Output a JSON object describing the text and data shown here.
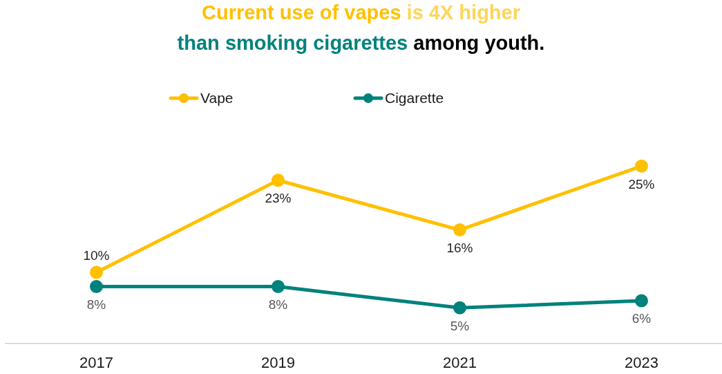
{
  "chart_data": {
    "type": "line",
    "title": "Current use of vapes is 4X higher\nthan smoking cigarettes among youth.",
    "categories": [
      "2017",
      "2019",
      "2021",
      "2023"
    ],
    "series": [
      {
        "name": "Vape",
        "color": "#ffc000",
        "values": [
          10,
          23,
          16,
          25
        ],
        "value_labels": [
          "10%",
          "23%",
          "16%",
          "25%"
        ]
      },
      {
        "name": "Cigarette",
        "color": "#00827c",
        "values": [
          8,
          8,
          5,
          6
        ],
        "value_labels": [
          "8%",
          "8%",
          "5%",
          "6%"
        ]
      }
    ],
    "legend": "top",
    "marker": "circle",
    "line_style": "solid",
    "grid": false
  }
}
